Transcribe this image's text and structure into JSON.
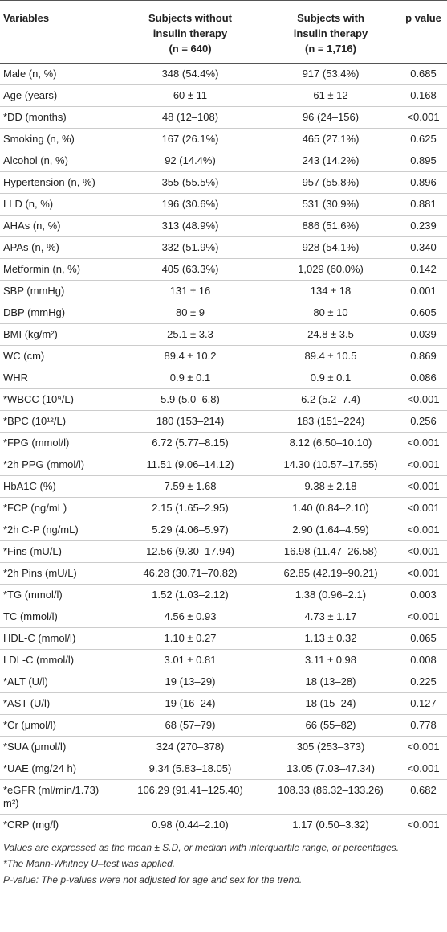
{
  "table": {
    "header": [
      [
        "Variables"
      ],
      [
        "Subjects without",
        "insulin therapy",
        "(n = 640)"
      ],
      [
        "Subjects with",
        "insulin therapy",
        "(n = 1,716)"
      ],
      [
        "p value"
      ]
    ],
    "rows": [
      [
        "Male (n, %)",
        "348 (54.4%)",
        "917 (53.4%)",
        "0.685"
      ],
      [
        "Age (years)",
        "60 ± 11",
        "61 ± 12",
        "0.168"
      ],
      [
        "*DD (months)",
        "48 (12–108)",
        "96 (24–156)",
        "<0.001"
      ],
      [
        "Smoking (n, %)",
        "167 (26.1%)",
        "465 (27.1%)",
        "0.625"
      ],
      [
        "Alcohol (n, %)",
        "92 (14.4%)",
        "243 (14.2%)",
        "0.895"
      ],
      [
        "Hypertension (n, %)",
        "355 (55.5%)",
        "957 (55.8%)",
        "0.896"
      ],
      [
        "LLD (n, %)",
        "196 (30.6%)",
        "531 (30.9%)",
        "0.881"
      ],
      [
        "AHAs (n, %)",
        "313 (48.9%)",
        "886 (51.6%)",
        "0.239"
      ],
      [
        "APAs (n, %)",
        "332 (51.9%)",
        "928 (54.1%)",
        "0.340"
      ],
      [
        "Metformin (n, %)",
        "405 (63.3%)",
        "1,029 (60.0%)",
        "0.142"
      ],
      [
        "SBP (mmHg)",
        "131 ± 16",
        "134 ± 18",
        "0.001"
      ],
      [
        "DBP (mmHg)",
        "80 ± 9",
        "80 ± 10",
        "0.605"
      ],
      [
        "BMI (kg/m²)",
        "25.1 ± 3.3",
        "24.8 ± 3.5",
        "0.039"
      ],
      [
        "WC (cm)",
        "89.4 ± 10.2",
        "89.4 ± 10.5",
        "0.869"
      ],
      [
        "WHR",
        "0.9 ± 0.1",
        "0.9 ± 0.1",
        "0.086"
      ],
      [
        "*WBCC (10⁹/L)",
        "5.9 (5.0–6.8)",
        "6.2 (5.2–7.4)",
        "<0.001"
      ],
      [
        "*BPC (10¹²/L)",
        "180 (153–214)",
        "183 (151–224)",
        "0.256"
      ],
      [
        "*FPG (mmol/l)",
        "6.72 (5.77–8.15)",
        "8.12 (6.50–10.10)",
        "<0.001"
      ],
      [
        "*2h PPG (mmol/l)",
        "11.51 (9.06–14.12)",
        "14.30 (10.57–17.55)",
        "<0.001"
      ],
      [
        "HbA1C (%)",
        "7.59 ± 1.68",
        "9.38 ± 2.18",
        "<0.001"
      ],
      [
        "*FCP (ng/mL)",
        "2.15 (1.65–2.95)",
        "1.40 (0.84–2.10)",
        "<0.001"
      ],
      [
        "*2h C-P (ng/mL)",
        "5.29 (4.06–5.97)",
        "2.90 (1.64–4.59)",
        "<0.001"
      ],
      [
        "*Fins (mU/L)",
        "12.56 (9.30–17.94)",
        "16.98 (11.47–26.58)",
        "<0.001"
      ],
      [
        "*2h Pins (mU/L)",
        "46.28 (30.71–70.82)",
        "62.85 (42.19–90.21)",
        "<0.001"
      ],
      [
        "*TG (mmol/l)",
        "1.52 (1.03–2.12)",
        "1.38 (0.96–2.1)",
        "0.003"
      ],
      [
        "TC (mmol/l)",
        "4.56 ± 0.93",
        "4.73 ± 1.17",
        "<0.001"
      ],
      [
        "HDL-C (mmol/l)",
        "1.10 ± 0.27",
        "1.13 ± 0.32",
        "0.065"
      ],
      [
        "LDL-C (mmol/l)",
        "3.01 ± 0.81",
        "3.11 ± 0.98",
        "0.008"
      ],
      [
        "*ALT (U/l)",
        "19 (13–29)",
        "18 (13–28)",
        "0.225"
      ],
      [
        "*AST (U/l)",
        "19 (16–24)",
        "18 (15–24)",
        "0.127"
      ],
      [
        "*Cr (μmol/l)",
        "68 (57–79)",
        "66 (55–82)",
        "0.778"
      ],
      [
        "*SUA (μmol/l)",
        "324 (270–378)",
        "305 (253–373)",
        "<0.001"
      ],
      [
        "*UAE (mg/24 h)",
        "9.34 (5.83–18.05)",
        "13.05 (7.03–47.34)",
        "<0.001"
      ],
      [
        "*eGFR (ml/min/1.73) m²)",
        "106.29 (91.41–125.40)",
        "108.33 (86.32–133.26)",
        "0.682"
      ],
      [
        "*CRP (mg/l)",
        "0.98 (0.44–2.10)",
        "1.17 (0.50–3.32)",
        "<0.001"
      ]
    ]
  },
  "footnotes": [
    "Values are expressed as the mean ± S.D, or median with interquartile range, or percentages.",
    "*The Mann-Whitney U–test was applied.",
    "P-value: The p-values were not adjusted for age and sex for the trend."
  ]
}
